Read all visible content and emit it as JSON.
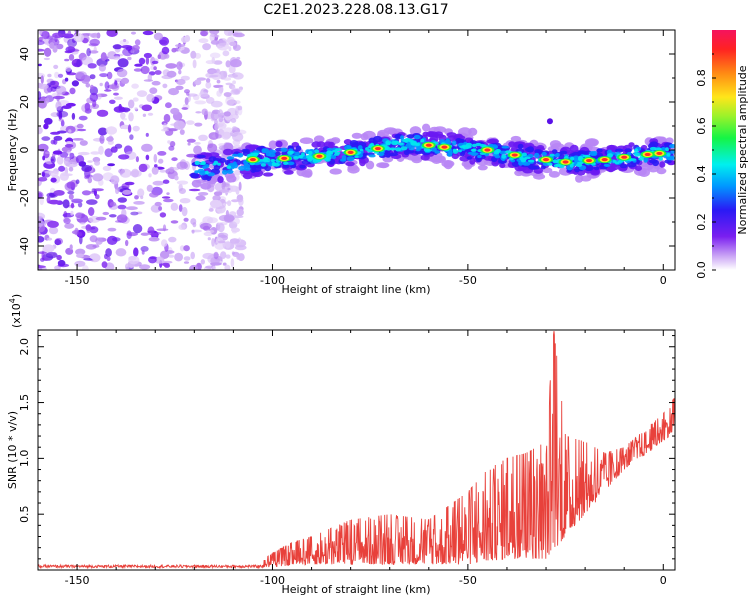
{
  "title": "C2E1.2023.228.08.13.G17",
  "chart_data": [
    {
      "type": "heatmap",
      "xlabel": "Height of straight line (km)",
      "ylabel": "Frequency (Hz)",
      "xlim": [
        -160,
        3
      ],
      "ylim": [
        -50,
        50
      ],
      "xticks": [
        -150,
        -100,
        -50,
        0
      ],
      "yticks": [
        -40,
        -20,
        0,
        20,
        40
      ],
      "colorbar": {
        "label": "Normalized spectral amplitude",
        "range": [
          0,
          1
        ],
        "ticks": [
          "0.0",
          "0.2",
          "0.4",
          "0.6",
          "0.8"
        ],
        "tick_values": [
          0.0,
          0.2,
          0.4,
          0.6,
          0.8
        ]
      },
      "ridge": {
        "description_x": [
          -115,
          -105,
          -90,
          -75,
          -65,
          -55,
          -45,
          -35,
          -25,
          -15,
          -5,
          2
        ],
        "frequency_hz": [
          -7,
          -4,
          -3,
          0,
          3,
          1,
          0,
          -3,
          -5,
          -4,
          -2,
          -1
        ]
      },
      "noise_region_x": [
        -160,
        -108
      ]
    },
    {
      "type": "line",
      "xlabel": "Height of straight line (km)",
      "ylabel": "SNR (10 * v/v)",
      "yscale_label": "(x10",
      "yscale_exp": "4",
      "xlim": [
        -160,
        3
      ],
      "ylim": [
        0,
        2.15
      ],
      "xticks": [
        -150,
        -100,
        -50,
        0
      ],
      "yticks": [
        0.5,
        1.0,
        1.5,
        2.0
      ],
      "ytick_labels": [
        "0.5",
        "1.0",
        "1.5",
        "2.0"
      ],
      "color": "#e8413b",
      "envelope": {
        "x": [
          -160,
          -110,
          -103,
          -100,
          -95,
          -90,
          -80,
          -70,
          -60,
          -50,
          -45,
          -40,
          -35,
          -30,
          -28,
          -25,
          -20,
          -15,
          -10,
          -5,
          0,
          3
        ],
        "y": [
          0.03,
          0.04,
          0.08,
          0.15,
          0.25,
          0.3,
          0.45,
          0.5,
          0.45,
          0.7,
          0.9,
          1.0,
          1.05,
          1.15,
          2.15,
          1.2,
          1.15,
          1.05,
          1.1,
          1.25,
          1.4,
          1.55
        ]
      },
      "floor": {
        "x": [
          -160,
          -110,
          -100,
          -90,
          -70,
          -50,
          -40,
          -30,
          -20,
          -10,
          0,
          3
        ],
        "y": [
          0.01,
          0.01,
          0.03,
          0.05,
          0.05,
          0.05,
          0.1,
          0.1,
          0.5,
          0.9,
          1.15,
          1.25
        ]
      }
    }
  ]
}
